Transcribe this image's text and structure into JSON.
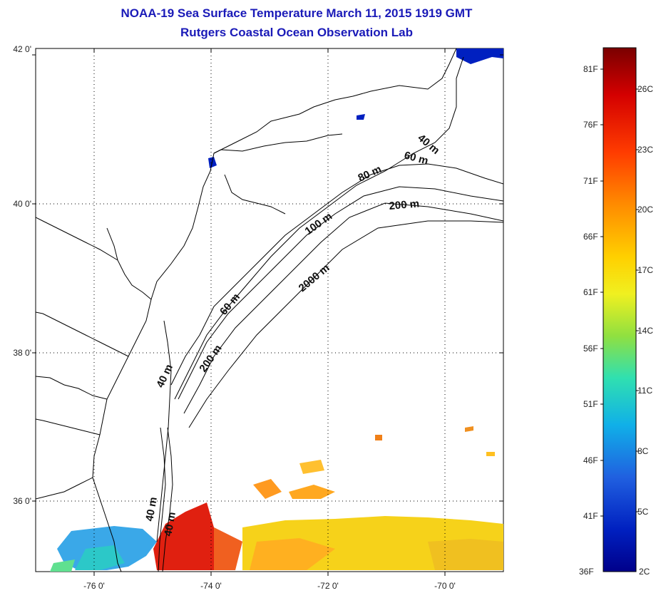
{
  "title": {
    "line1": "NOAA-19 Sea Surface Temperature March 11, 2015 1919 GMT",
    "line2": "Rutgers Coastal Ocean Observation Lab"
  },
  "map": {
    "lat_ticks": [
      "42 0'",
      "40 0'",
      "38 0'",
      "36 0'"
    ],
    "lon_ticks": [
      "-76 0'",
      "-74 0'",
      "-72 0'",
      "-70 0'"
    ],
    "contour_labels": [
      "40 m",
      "60 m",
      "80 m",
      "200 m",
      "100 m",
      "2000 m",
      "60 m",
      "200 m",
      "40 m",
      "40 m",
      "40 m"
    ]
  },
  "colorbar": {
    "f_labels": [
      "81F",
      "76F",
      "71F",
      "66F",
      "61F",
      "56F",
      "51F",
      "46F",
      "41F",
      "36F"
    ],
    "c_labels": [
      "26C",
      "23C",
      "20C",
      "17C",
      "14C",
      "11C",
      "8C",
      "5C",
      "2C"
    ],
    "colors": [
      "#7a0000",
      "#d40000",
      "#ff3c00",
      "#ff8c00",
      "#ffd000",
      "#f0f020",
      "#90e040",
      "#30e0b0",
      "#10b0e8",
      "#2060e0",
      "#0020c0",
      "#00008a"
    ]
  }
}
